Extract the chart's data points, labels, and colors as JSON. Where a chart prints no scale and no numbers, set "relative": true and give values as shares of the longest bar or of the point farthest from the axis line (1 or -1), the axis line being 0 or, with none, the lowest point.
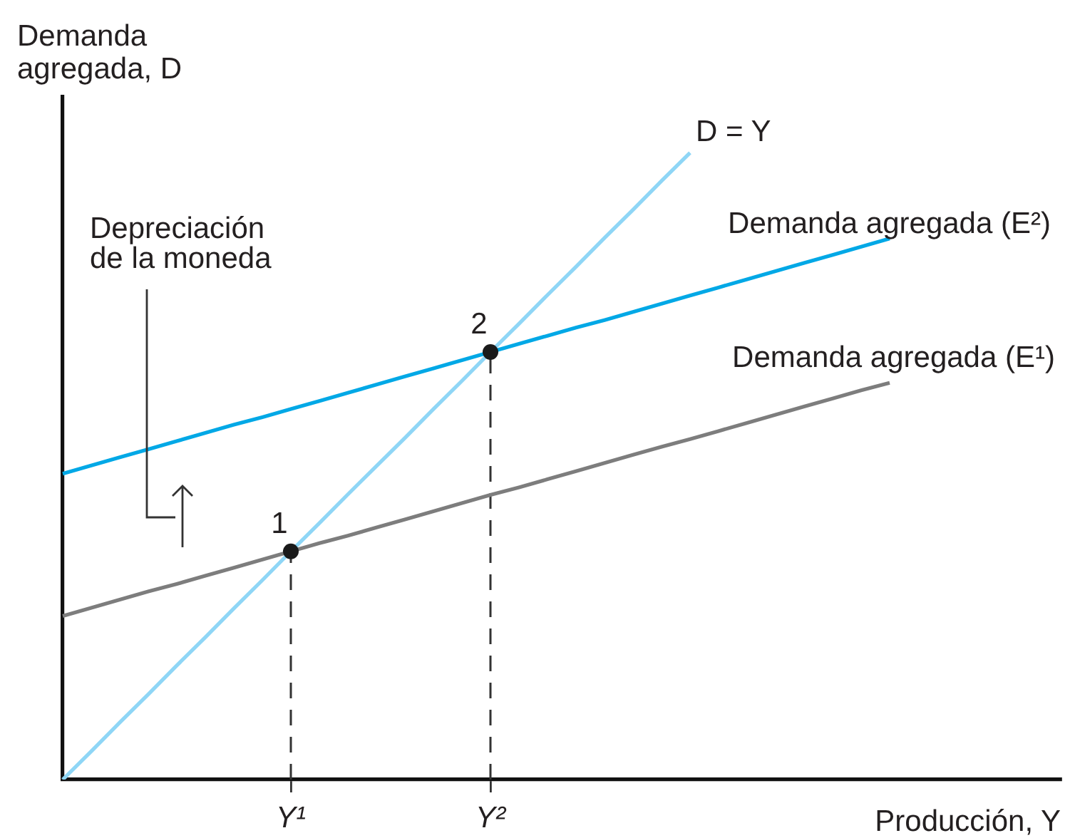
{
  "chart_data": {
    "type": "line",
    "relative": true,
    "xlabel": "Producción, Y",
    "ylabel": "Demanda agregada, D",
    "tick_labels": "x",
    "categories": [
      null,
      null,
      null,
      null,
      null,
      null,
      null,
      null,
      "Y¹",
      null,
      null,
      null,
      null,
      null,
      null,
      "Y²",
      null,
      null,
      null,
      null,
      null,
      null,
      null,
      null,
      null,
      null,
      null,
      null,
      null,
      null,
      null,
      null,
      null,
      null,
      null,
      null
    ],
    "series": [
      {
        "name": "D = Y",
        "color": "#8fd6f6",
        "values": [
          0,
          0.045,
          0.091,
          0.136,
          0.182,
          0.227,
          0.273,
          0.318,
          0.364,
          0.409,
          0.455,
          0.5,
          0.545,
          0.591,
          0.636,
          0.682,
          0.727,
          0.773,
          0.818,
          0.864,
          0.909,
          0.955,
          1,
          null,
          null,
          null,
          null,
          null,
          null,
          null,
          null,
          null,
          null,
          null,
          null,
          null
        ]
      },
      {
        "name": "Demanda agregada (E²)",
        "color": "#00a8e6",
        "values": [
          0.488,
          0.501,
          0.514,
          0.527,
          0.54,
          0.553,
          0.566,
          0.578,
          0.591,
          0.604,
          0.617,
          0.63,
          0.643,
          0.656,
          0.669,
          0.682,
          0.695,
          0.708,
          0.721,
          0.733,
          0.746,
          0.759,
          0.772,
          0.785,
          0.798,
          0.811,
          0.824,
          0.837,
          0.85,
          0.863,
          null,
          null,
          null,
          null,
          null,
          null
        ]
      },
      {
        "name": "Demanda agregada (E¹)",
        "color": "#7d7d7d",
        "values": [
          0.261,
          0.274,
          0.287,
          0.3,
          0.312,
          0.325,
          0.338,
          0.351,
          0.364,
          0.377,
          0.389,
          0.402,
          0.415,
          0.428,
          0.441,
          0.454,
          0.466,
          0.479,
          0.492,
          0.505,
          0.518,
          0.531,
          0.543,
          0.556,
          0.569,
          0.582,
          0.595,
          0.608,
          0.621,
          0.633,
          null,
          null,
          null,
          null,
          null,
          null
        ]
      },
      {
        "type": "scatter",
        "marker": "circle",
        "color": "#1a1a1a",
        "x": [
          "Y¹",
          "Y²"
        ],
        "values": [
          0.364,
          0.682
        ]
      },
      {
        "line_style": "dashed",
        "color": "#333333",
        "x": [
          "Y¹",
          "Y¹"
        ],
        "values": [
          0,
          0.364
        ]
      },
      {
        "line_style": "dashed",
        "color": "#333333",
        "x": [
          "Y²",
          "Y²"
        ],
        "values": [
          0,
          0.682
        ]
      }
    ],
    "annotations": [
      "Depreciación de la moneda",
      {
        "text": "1",
        "x": "Y¹",
        "y": 0.364
      },
      {
        "text": "2",
        "x": "Y²",
        "y": 0.682
      }
    ]
  }
}
